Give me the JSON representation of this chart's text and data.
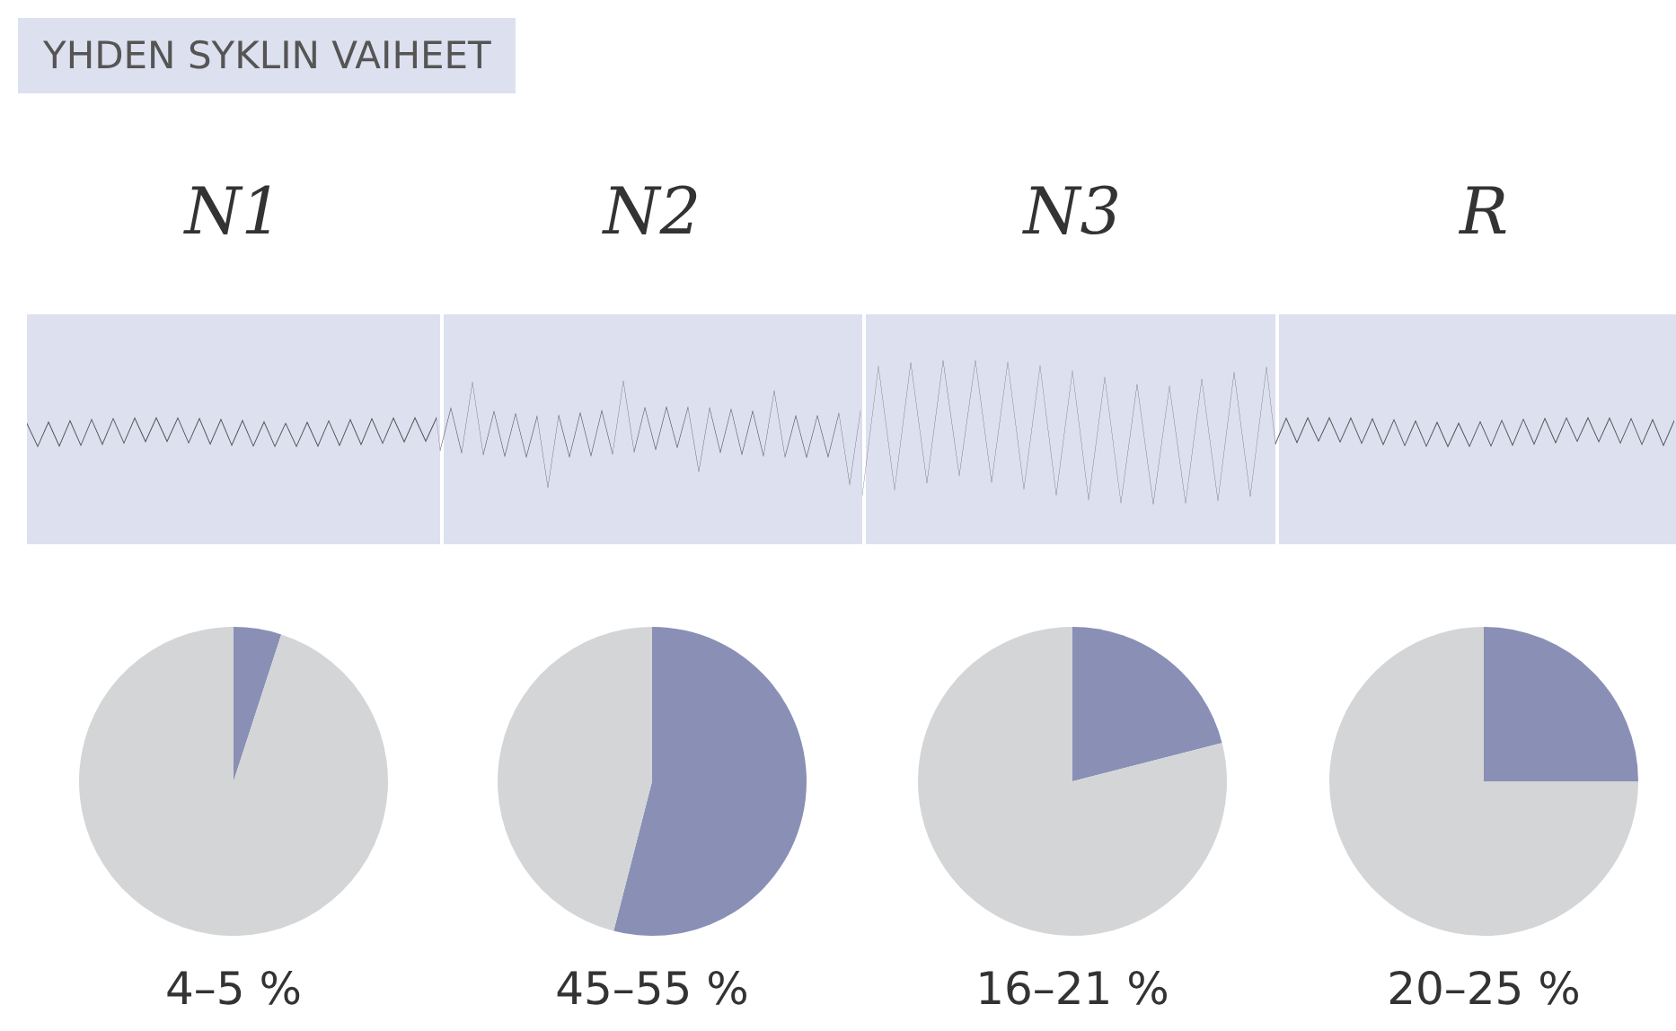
{
  "chart_data": [
    {
      "type": "other",
      "title": "YHDEN SYKLIN VAIHEET"
    },
    {
      "type": "pie",
      "title": "N1",
      "categories": [
        null,
        null
      ],
      "values": [
        5,
        95
      ],
      "colors": [
        "#8a8fb5",
        "#d4d5d6"
      ],
      "annotations": [
        "4–5 %"
      ]
    },
    {
      "type": "pie",
      "title": "N2",
      "categories": [
        null,
        null
      ],
      "values": [
        54,
        46
      ],
      "colors": [
        "#8a8fb5",
        "#d4d5d6"
      ],
      "annotations": [
        "45–55 %"
      ]
    },
    {
      "type": "pie",
      "title": "N3",
      "categories": [
        null,
        null
      ],
      "values": [
        21,
        79
      ],
      "colors": [
        "#8a8fb5",
        "#d4d5d6"
      ],
      "annotations": [
        "16–21 %"
      ]
    },
    {
      "type": "pie",
      "title": "R",
      "categories": [
        null,
        null
      ],
      "values": [
        25,
        75
      ],
      "colors": [
        "#8a8fb5",
        "#d4d5d6"
      ],
      "annotations": [
        "20–25 %"
      ]
    }
  ]
}
